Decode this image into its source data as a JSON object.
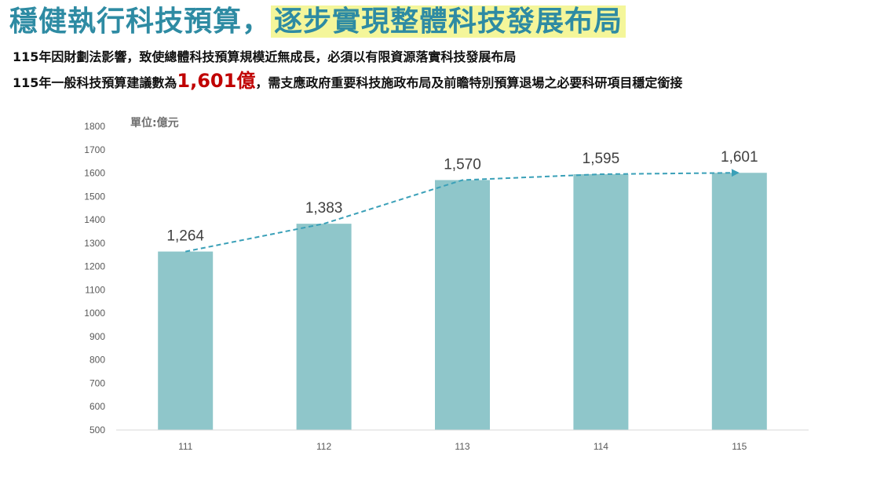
{
  "header": {
    "title_part1": "穩健執行科技預算",
    "title_sep": "，",
    "title_part2": "逐步實現整體科技發展布局",
    "line1": "115年因財劃法影響，致使總體科技預算規模近無成長，必須以有限資源落實科技發展布局",
    "line2_prefix": "115年一般科技預算建議數為",
    "line2_highlight": "1,601億",
    "line2_suffix": "，需支應政府重要科技施政布局及前瞻特別預算退場之必要科研項目穩定銜接"
  },
  "colors": {
    "title": "#2e8ba3",
    "title_highlight_bg": "#f4f69a",
    "bar": "#8fc6ca",
    "trend": "#3aa0b8",
    "accent_red": "#c00000"
  },
  "chart_data": {
    "type": "bar",
    "unit_label": "單位:億元",
    "categories": [
      "111",
      "112",
      "113",
      "114",
      "115"
    ],
    "values": [
      1264,
      1383,
      1570,
      1595,
      1601
    ],
    "data_labels": [
      "1,264",
      "1,383",
      "1,570",
      "1,595",
      "1,601"
    ],
    "ylim": [
      500,
      1800
    ],
    "yticks": [
      500,
      600,
      700,
      800,
      900,
      1000,
      1100,
      1200,
      1300,
      1400,
      1500,
      1600,
      1700,
      1800
    ],
    "trend_line": "dashed with arrow",
    "grid": false
  }
}
